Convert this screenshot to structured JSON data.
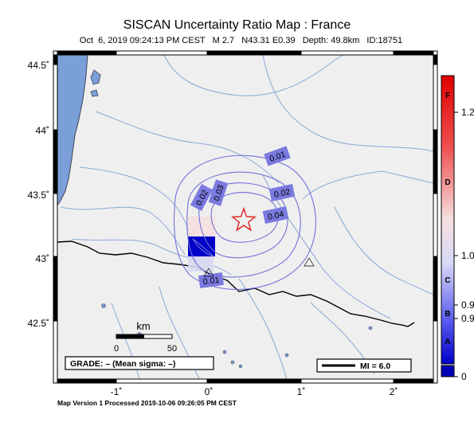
{
  "title": "SISCAN Uncertainty Ratio Map : France",
  "subtitle": "Oct  6, 2019 09:24:13 PM CEST   M 2.7   N43.31 E0.39   Depth: 49.8km   ID:18751",
  "footer": "Map Version 1 Processed 2019-10-06 09:26:05 PM CEST",
  "axes": {
    "lat_ticks": [
      "44.5˚",
      "44˚",
      "43.5˚",
      "43˚",
      "42.5˚"
    ],
    "lon_ticks": [
      "-1˚",
      "0˚",
      "1˚",
      "2˚"
    ]
  },
  "contour_labels": [
    "0.01",
    "0.02",
    "0.03",
    "0.02",
    "0.04",
    "0.01"
  ],
  "scale_bar": {
    "unit": "km",
    "min_label": "0",
    "max_label": "50"
  },
  "grade_box": "GRADE: – (Mean sigma: –)",
  "legend_box": "MI = 6.0",
  "colorbar": {
    "letters": [
      "F",
      "D",
      "C",
      "B",
      "A"
    ],
    "values": [
      "1.2",
      "1.0",
      "0.9",
      "0.9",
      "0"
    ]
  },
  "colors": {
    "land": "#efefef",
    "water": "#7a9fd9",
    "contour": "#7070dd",
    "label_bg": "#7a7ae0",
    "epicenter": "#e02020",
    "rivers": "#88a8d8",
    "border": "#000000"
  },
  "epicenter": {
    "lat": 43.31,
    "lon": 0.39,
    "marker": "star"
  }
}
